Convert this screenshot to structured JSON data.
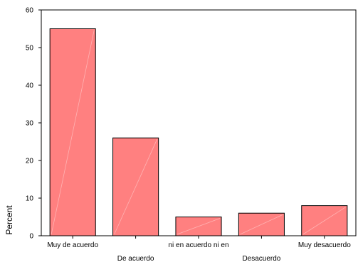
{
  "chart_data": {
    "type": "bar",
    "title": "",
    "xlabel": "",
    "ylabel": "Percent",
    "ylim": [
      0,
      60
    ],
    "yticks": [
      0,
      10,
      20,
      30,
      40,
      50,
      60
    ],
    "grid": false,
    "categories": [
      "Muy de acuerdo",
      "De acuerdo",
      "ni en acuerdo ni en",
      "Desacuerdo",
      "Muy desacuerdo"
    ],
    "values": [
      55,
      26,
      5,
      6,
      8
    ],
    "bar_color": "#ff8080",
    "bar_edge_color": "#000000"
  }
}
